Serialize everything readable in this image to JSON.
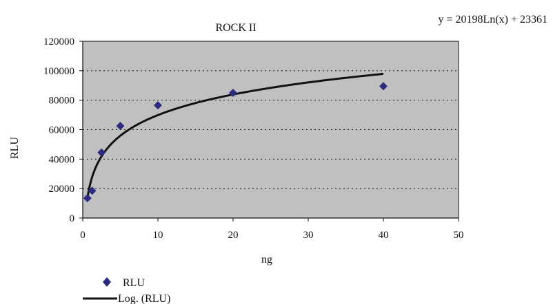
{
  "chart_data": {
    "type": "scatter",
    "title": "ROCK II",
    "xlabel": "ng",
    "ylabel": "RLU",
    "xlim": [
      0,
      50
    ],
    "ylim": [
      0,
      120000
    ],
    "x_ticks": [
      0,
      10,
      20,
      30,
      40,
      50
    ],
    "y_ticks": [
      0,
      20000,
      40000,
      60000,
      80000,
      100000,
      120000
    ],
    "x_tick_labels": [
      "0",
      "10",
      "20",
      "30",
      "40",
      "50"
    ],
    "y_tick_labels": [
      "0",
      "20000",
      "40000",
      "60000",
      "80000",
      "100000",
      "120000"
    ],
    "grid": "horizontal-dotted",
    "plot_background": "#c0c0c0",
    "series": [
      {
        "name": "RLU",
        "kind": "scatter",
        "marker": "diamond",
        "color": "#2b2b7f",
        "x": [
          0.625,
          1.25,
          2.5,
          5,
          10,
          20,
          40
        ],
        "y": [
          13500,
          18500,
          44500,
          62500,
          76500,
          85000,
          89500
        ]
      },
      {
        "name": "Log. (RLU)",
        "kind": "trendline-log",
        "color": "#111111",
        "a": 20198,
        "b": 23361,
        "x_range": [
          0.625,
          40
        ]
      }
    ],
    "annotations": [
      "y = 20198Ln(x) + 23361"
    ],
    "legend_position": "bottom-left"
  }
}
